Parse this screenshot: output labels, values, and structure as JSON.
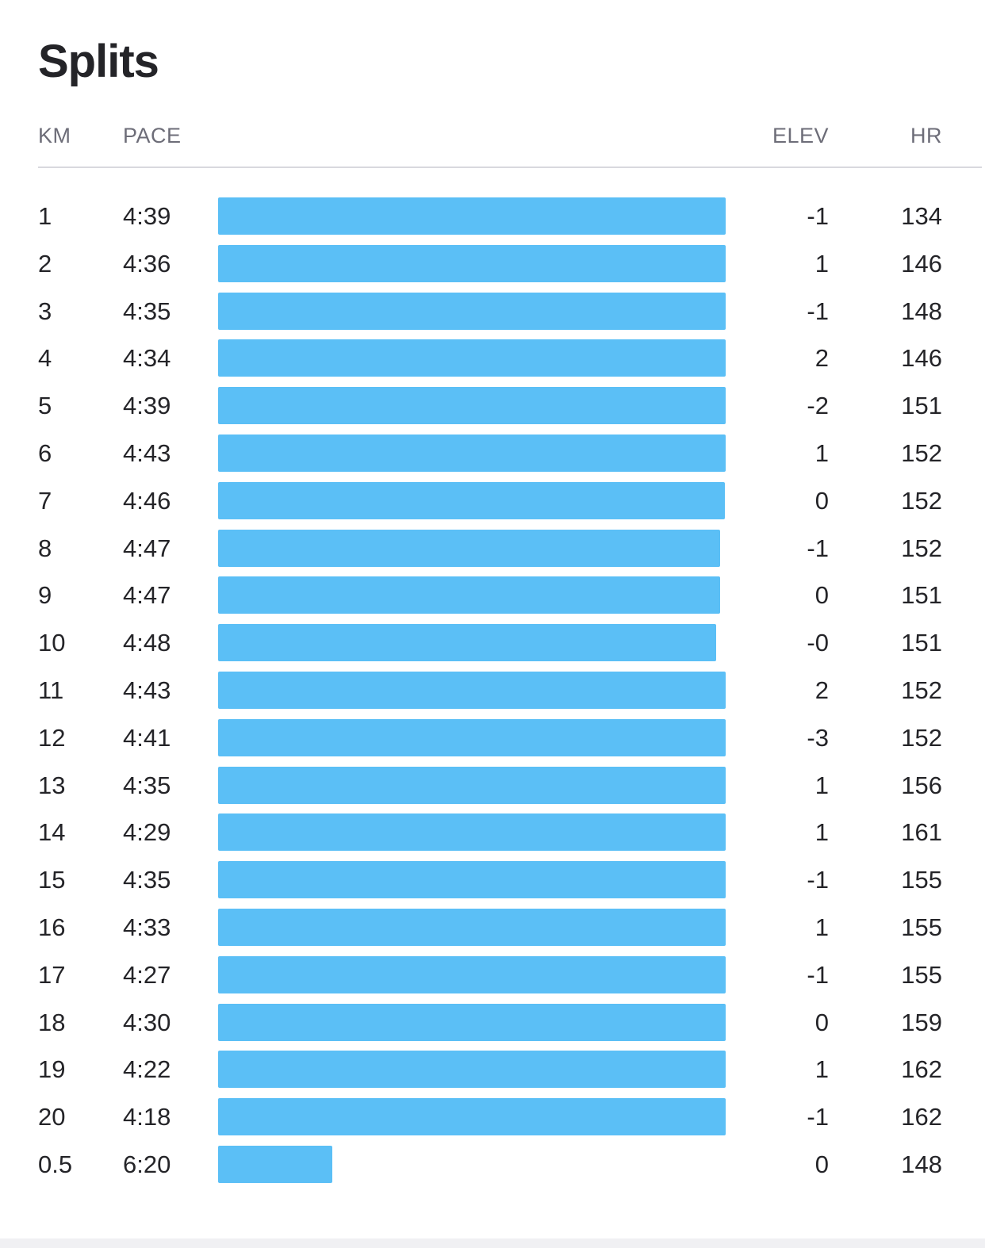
{
  "title": "Splits",
  "columns": {
    "km": "KM",
    "pace": "PACE",
    "elev": "ELEV",
    "hr": "HR"
  },
  "bar_color": "#5bbff6",
  "splits": [
    {
      "km": "1",
      "pace": "4:39",
      "elev": "-1",
      "hr": "134",
      "pace_seconds": 279
    },
    {
      "km": "2",
      "pace": "4:36",
      "elev": "1",
      "hr": "146",
      "pace_seconds": 276
    },
    {
      "km": "3",
      "pace": "4:35",
      "elev": "-1",
      "hr": "148",
      "pace_seconds": 275
    },
    {
      "km": "4",
      "pace": "4:34",
      "elev": "2",
      "hr": "146",
      "pace_seconds": 274
    },
    {
      "km": "5",
      "pace": "4:39",
      "elev": "-2",
      "hr": "151",
      "pace_seconds": 279
    },
    {
      "km": "6",
      "pace": "4:43",
      "elev": "1",
      "hr": "152",
      "pace_seconds": 283
    },
    {
      "km": "7",
      "pace": "4:46",
      "elev": "0",
      "hr": "152",
      "pace_seconds": 286
    },
    {
      "km": "8",
      "pace": "4:47",
      "elev": "-1",
      "hr": "152",
      "pace_seconds": 287
    },
    {
      "km": "9",
      "pace": "4:47",
      "elev": "0",
      "hr": "151",
      "pace_seconds": 287
    },
    {
      "km": "10",
      "pace": "4:48",
      "elev": "-0",
      "hr": "151",
      "pace_seconds": 288
    },
    {
      "km": "11",
      "pace": "4:43",
      "elev": "2",
      "hr": "152",
      "pace_seconds": 283
    },
    {
      "km": "12",
      "pace": "4:41",
      "elev": "-3",
      "hr": "152",
      "pace_seconds": 281
    },
    {
      "km": "13",
      "pace": "4:35",
      "elev": "1",
      "hr": "156",
      "pace_seconds": 275
    },
    {
      "km": "14",
      "pace": "4:29",
      "elev": "1",
      "hr": "161",
      "pace_seconds": 269
    },
    {
      "km": "15",
      "pace": "4:35",
      "elev": "-1",
      "hr": "155",
      "pace_seconds": 275
    },
    {
      "km": "16",
      "pace": "4:33",
      "elev": "1",
      "hr": "155",
      "pace_seconds": 273
    },
    {
      "km": "17",
      "pace": "4:27",
      "elev": "-1",
      "hr": "155",
      "pace_seconds": 267
    },
    {
      "km": "18",
      "pace": "4:30",
      "elev": "0",
      "hr": "159",
      "pace_seconds": 270
    },
    {
      "km": "19",
      "pace": "4:22",
      "elev": "1",
      "hr": "162",
      "pace_seconds": 262
    },
    {
      "km": "20",
      "pace": "4:18",
      "elev": "-1",
      "hr": "162",
      "pace_seconds": 258
    },
    {
      "km": "0.5",
      "pace": "6:20",
      "elev": "0",
      "hr": "148",
      "pace_seconds": 380
    }
  ]
}
